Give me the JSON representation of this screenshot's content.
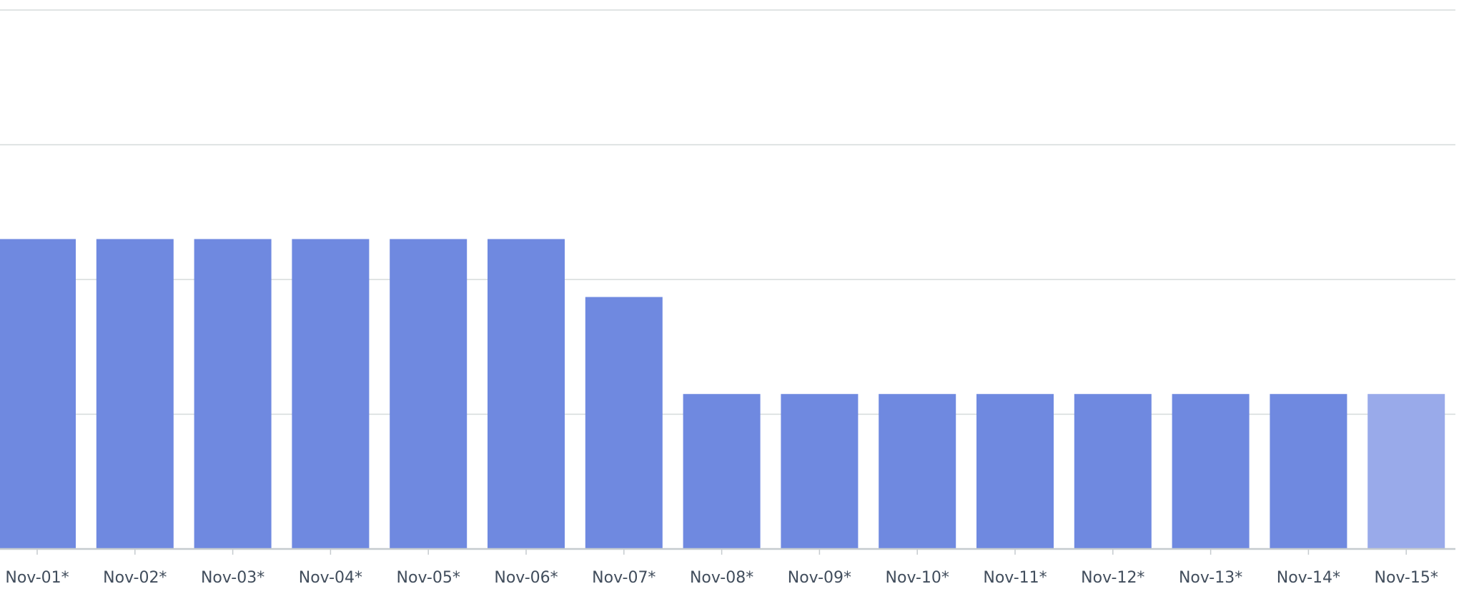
{
  "chart_data": {
    "type": "bar",
    "categories": [
      "Nov-01*",
      "Nov-02*",
      "Nov-03*",
      "Nov-04*",
      "Nov-05*",
      "Nov-06*",
      "Nov-07*",
      "Nov-08*",
      "Nov-09*",
      "Nov-10*",
      "Nov-11*",
      "Nov-12*",
      "Nov-13*",
      "Nov-14*",
      "Nov-15*"
    ],
    "values": [
      2.3,
      2.3,
      2.3,
      2.3,
      2.3,
      2.3,
      1.87,
      1.15,
      1.15,
      1.15,
      1.15,
      1.15,
      1.15,
      1.15,
      1.15
    ],
    "ylim": [
      0,
      4
    ],
    "grid": true,
    "bar_color": "#6f89e0",
    "highlight_color": "#99aaea",
    "highlighted_categories": [
      "Nov-15*"
    ]
  }
}
